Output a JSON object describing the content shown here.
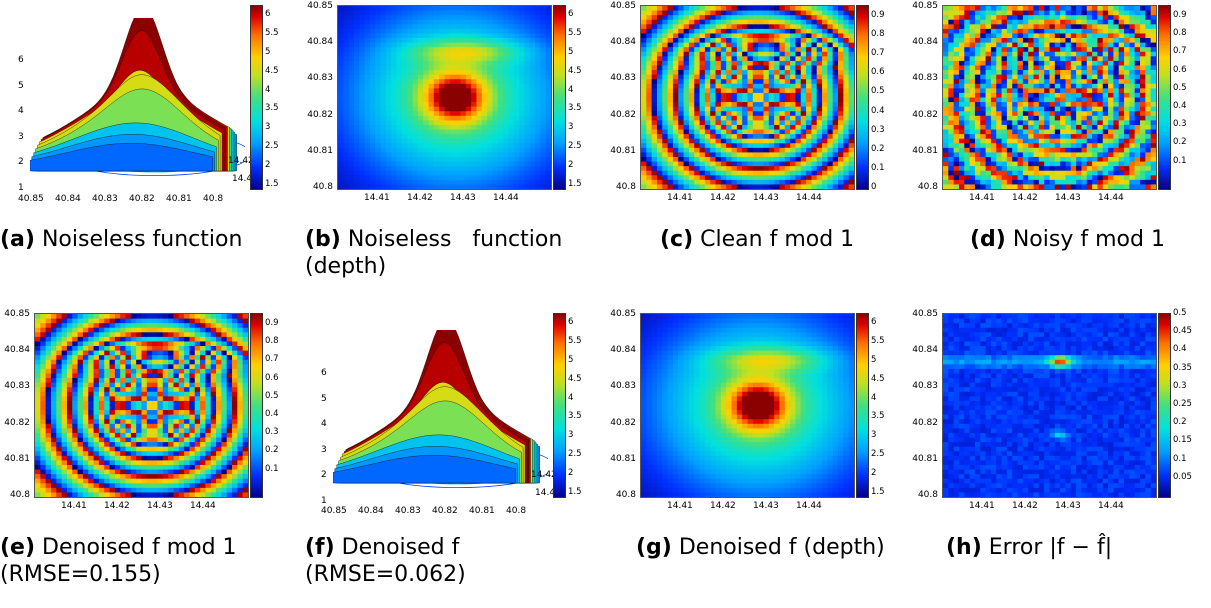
{
  "panels": [
    {
      "id": "a",
      "letter": "(a)",
      "caption": "Noiseless function",
      "caption2": "",
      "kind": "surface",
      "cb_max": "6"
    },
    {
      "id": "b",
      "letter": "(b)",
      "caption": "Noiseless   function",
      "caption2": "(depth)",
      "kind": "depth"
    },
    {
      "id": "c",
      "letter": "(c)",
      "caption": "Clean f mod 1",
      "caption2": "",
      "kind": "wrapped-clean"
    },
    {
      "id": "d",
      "letter": "(d)",
      "caption": "Noisy f mod 1",
      "caption2": "",
      "kind": "wrapped-noisy"
    },
    {
      "id": "e",
      "letter": "(e)",
      "caption": "Denoised f mod 1",
      "caption2": "(RMSE=0.155)",
      "kind": "wrapped-denoised"
    },
    {
      "id": "f",
      "letter": "(f)",
      "caption": "Denoised f",
      "caption2": "(RMSE=0.062)",
      "kind": "surface"
    },
    {
      "id": "g",
      "letter": "(g)",
      "caption": "Denoised f (depth)",
      "caption2": "",
      "kind": "depth"
    },
    {
      "id": "h",
      "letter": "(h)",
      "caption": "Error |f − f̂|",
      "caption2": "",
      "kind": "error"
    }
  ],
  "axes": {
    "y_ticks": [
      "40.85",
      "40.84",
      "40.83",
      "40.82",
      "40.81",
      "40.8"
    ],
    "x_ticks": [
      "14.41",
      "14.42",
      "14.43",
      "14.44"
    ],
    "surf_z_ticks": [
      "6",
      "5",
      "4",
      "3",
      "2",
      "1"
    ],
    "surf_x_ticks": [
      "40.85",
      "40.84",
      "40.83",
      "40.82",
      "40.81",
      "40.8"
    ],
    "surf_y_ticks": [
      "14.42",
      "14.42"
    ]
  },
  "colorbars": {
    "depth": [
      "6",
      "5.5",
      "5",
      "4.5",
      "4",
      "3.5",
      "3",
      "2.5",
      "2",
      "1.5"
    ],
    "wrapped_with_zero": [
      "0.9",
      "0.8",
      "0.7",
      "0.6",
      "0.5",
      "0.4",
      "0.3",
      "0.2",
      "0.1",
      "0"
    ],
    "wrapped": [
      "0.9",
      "0.8",
      "0.7",
      "0.6",
      "0.5",
      "0.4",
      "0.3",
      "0.2",
      "0.1"
    ],
    "error": [
      "0.5",
      "0.45",
      "0.4",
      "0.35",
      "0.3",
      "0.25",
      "0.2",
      "0.15",
      "0.1",
      "0.05"
    ]
  }
}
